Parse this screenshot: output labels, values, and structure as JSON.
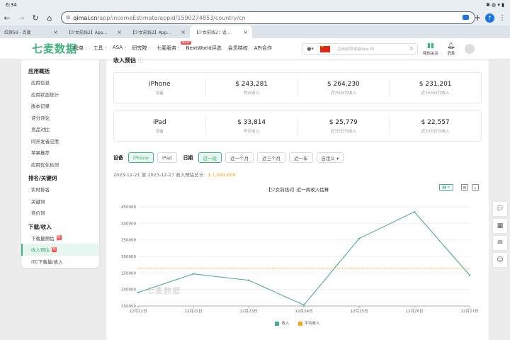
{
  "status": {
    "time": "6:34"
  },
  "browser": {
    "url_host": "qimai.cn",
    "url_path": "/app/incomeEstimate/appid/1590274853/country/cn",
    "tabs": [
      {
        "label": "红旗59 - 百度"
      },
      {
        "label": "【少女前线2】App..."
      },
      {
        "label": "【少女前线2】App..."
      },
      {
        "label": "【少女前线2：追..."
      }
    ]
  },
  "site": {
    "logo": "七麦数据",
    "nav": [
      "榜单 ·",
      "工具 ·",
      "ASA ·",
      "研究院 ·",
      "七麦服务 ·",
      "NextWorld评选",
      "会员特权",
      "API合作"
    ],
    "new_badge": "NEW",
    "search_placeholder": "应用名称或者App ID",
    "my_follow": "我的关注",
    "messages": "消息"
  },
  "sidebar": {
    "groups": [
      {
        "title": "应用概括",
        "items": [
          "应用信息",
          "应用状态统计",
          "版本记录",
          "评分评论",
          "竞品对比",
          "同开发者应用",
          "苹果推荐",
          "应用优化检测"
        ]
      },
      {
        "title": "排名/关键词",
        "items": [
          "实时排名",
          "关键词",
          "竞价词"
        ]
      },
      {
        "title": "下载/收入",
        "items": [
          "下载量预估",
          "收入预估",
          "ITC下载量/收入"
        ]
      }
    ],
    "hot_label": "热"
  },
  "main": {
    "section_title": "收入预估",
    "iphone": {
      "device": "iPhone",
      "device_sub": "设备",
      "v1": "$ 243,281",
      "l1": "昨日收入",
      "v2": "$ 264,230",
      "l2": "近7日日均收入",
      "v3": "$ 231,201",
      "l3": "近30日日均收入"
    },
    "ipad": {
      "device": "iPad",
      "device_sub": "设备",
      "v1": "$ 33,814",
      "l1": "昨日收入",
      "v2": "$ 25,779",
      "l2": "近7日日均收入",
      "v3": "$ 22,557",
      "l3": "近30日日均收入"
    },
    "filters": {
      "device_label": "设备",
      "devices": [
        "iPhone",
        "iPad"
      ],
      "date_label": "日期",
      "ranges": [
        "近一周",
        "近一个月",
        "近三个月",
        "近一年"
      ],
      "custom": "自定义 ▾"
    },
    "summary_text": "2023-12-21 至 2023-12-27 收入预估总计:",
    "summary_amount": "$ 1,849,608",
    "watermark": "七麦数据"
  },
  "chart_data": {
    "type": "line",
    "title": "【少女前线2】近一周收入估算",
    "categories": [
      "12月21日",
      "12月22日",
      "12月23日",
      "12月24日",
      "12月25日",
      "12月26日",
      "12月27日"
    ],
    "series": [
      {
        "name": "收入",
        "values": [
          191000,
          247000,
          228000,
          153000,
          354000,
          435000,
          243281
        ],
        "color": "#4cae89"
      },
      {
        "name": "平均收入",
        "values": [
          264230,
          264230,
          264230,
          264230,
          264230,
          264230,
          264230
        ],
        "color": "#f5a623"
      }
    ],
    "ylim": [
      150000,
      450000
    ],
    "yticks": [
      "150000",
      "200000",
      "250000",
      "300000",
      "350000",
      "400000",
      "450000"
    ],
    "grid": true,
    "legend": "bottom-center"
  }
}
